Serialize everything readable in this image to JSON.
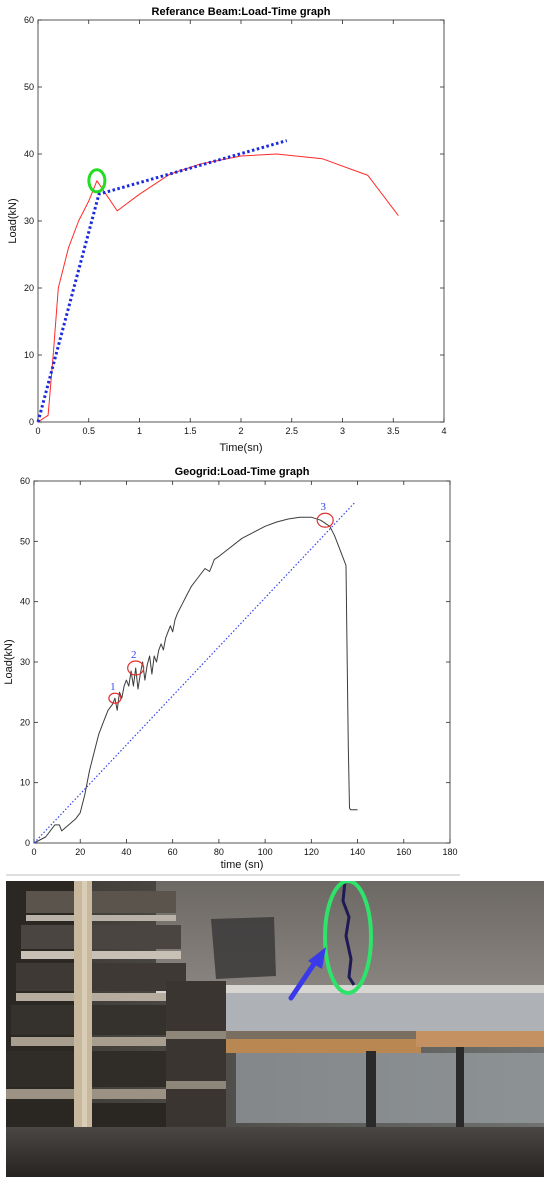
{
  "chart_data": [
    {
      "type": "line",
      "title": "Referance Beam:Load-Time graph",
      "xlabel": "Time(sn)",
      "ylabel": "Load(kN)",
      "xlim": [
        0,
        4
      ],
      "ylim": [
        0,
        60
      ],
      "xticks": [
        "0",
        "0.5",
        "1",
        "1.5",
        "2",
        "2.5",
        "3",
        "3.5",
        "4"
      ],
      "xtick_values": [
        0,
        0.5,
        1,
        1.5,
        2,
        2.5,
        3,
        3.5,
        4
      ],
      "yticks": [
        "0",
        "10",
        "20",
        "30",
        "40",
        "50",
        "60"
      ],
      "ytick_values": [
        0,
        10,
        20,
        30,
        40,
        50,
        60
      ],
      "grid": false,
      "series": [
        {
          "color": "#ff2a2a",
          "style": "solid",
          "x": [
            0,
            0.1,
            0.15,
            0.2,
            0.3,
            0.4,
            0.5,
            0.58,
            0.67,
            0.78,
            1.0,
            1.3,
            1.6,
            2.0,
            2.35,
            2.8,
            3.25,
            3.55
          ],
          "y": [
            0,
            1,
            10,
            20,
            26,
            30,
            33,
            36,
            34,
            31.5,
            34,
            37,
            38.5,
            39.7,
            40,
            39.3,
            36.8,
            30.8
          ]
        },
        {
          "color": "#1a2bdc",
          "style": "dotted",
          "x": [
            0,
            0.6,
            2.45
          ],
          "y": [
            0,
            34,
            42
          ]
        }
      ],
      "annotations": [
        {
          "shape": "ellipse",
          "color": "#22dd22",
          "x": 0.58,
          "y": 36
        }
      ]
    },
    {
      "type": "line",
      "title": "Geogrid:Load-Time graph",
      "xlabel": "time (sn)",
      "ylabel": "Load(kN)",
      "xlim": [
        0,
        180
      ],
      "ylim": [
        0,
        60
      ],
      "xticks": [
        "0",
        "20",
        "40",
        "60",
        "80",
        "100",
        "120",
        "140",
        "160",
        "180"
      ],
      "xtick_values": [
        0,
        20,
        40,
        60,
        80,
        100,
        120,
        140,
        160,
        180
      ],
      "yticks": [
        "0",
        "10",
        "20",
        "30",
        "40",
        "50",
        "60"
      ],
      "ytick_values": [
        0,
        10,
        20,
        30,
        40,
        50,
        60
      ],
      "grid": false,
      "series": [
        {
          "color": "#3c3c3c",
          "style": "solid",
          "x": [
            0,
            5,
            9,
            11,
            12,
            15,
            18,
            20,
            22,
            24,
            26,
            28,
            30,
            32,
            34,
            35,
            36,
            37,
            38,
            39,
            40,
            41,
            42,
            43,
            44,
            45,
            46,
            47,
            48,
            49,
            50,
            51,
            52,
            53,
            54,
            55,
            56,
            57,
            58,
            59,
            60,
            61,
            62,
            64,
            66,
            68,
            70,
            72,
            74,
            76,
            77,
            78,
            80,
            85,
            90,
            95,
            100,
            105,
            110,
            115,
            120,
            124,
            128,
            130,
            132,
            134,
            135,
            135.5,
            136,
            136.5,
            137,
            140
          ],
          "y": [
            0,
            1,
            3,
            3,
            2,
            3,
            4,
            5,
            8,
            12,
            15,
            18,
            20,
            22,
            23,
            24,
            22,
            25,
            24,
            26,
            27,
            26,
            28.5,
            26,
            29,
            25.5,
            28,
            30,
            27,
            29.5,
            31,
            28,
            31,
            30,
            32,
            33,
            32,
            34,
            35,
            36,
            35,
            37,
            38,
            39.5,
            41,
            42.5,
            43.5,
            44.5,
            45.5,
            45,
            46,
            47,
            47.5,
            49,
            50.5,
            51.5,
            52.5,
            53.2,
            53.7,
            54,
            54,
            53.5,
            52.5,
            51,
            49,
            47,
            46,
            30,
            16,
            5.8,
            5.5,
            5.5
          ]
        },
        {
          "color": "#3344ee",
          "style": "dotted",
          "x": [
            0,
            139
          ],
          "y": [
            0,
            56.5
          ]
        }
      ],
      "annotations": [
        {
          "label": "1",
          "shape": "circle",
          "color": "#e03030",
          "x": 35,
          "y": 24
        },
        {
          "label": "2",
          "shape": "circle",
          "color": "#e03030",
          "x": 44,
          "y": 29
        },
        {
          "label": "3",
          "shape": "circle",
          "color": "#e03030",
          "x": 126,
          "y": 53.5
        }
      ]
    }
  ],
  "photo": {
    "highlight_colors": {
      "ellipse": "#2fe26a",
      "arrow": "#3a3ae8",
      "crack": "#1f1a55"
    }
  }
}
